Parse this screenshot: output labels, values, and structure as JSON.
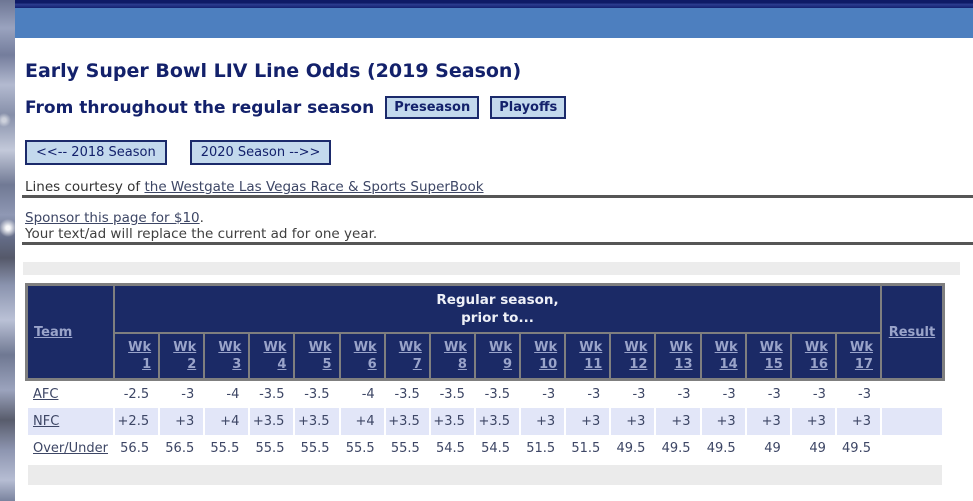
{
  "page": {
    "title": "Early Super Bowl LIV Line Odds (2019 Season)",
    "subtitle": "From throughout the regular season"
  },
  "nav": {
    "preseason_label": "Preseason",
    "playoffs_label": "Playoffs",
    "prev_season_label": "<<-- 2018 Season",
    "next_season_label": "2020 Season -->>"
  },
  "credit": {
    "prefix": "Lines courtesy of ",
    "link_text": "the Westgate Las Vegas Race & Sports SuperBook"
  },
  "sponsor": {
    "link_text": "Sponsor this page for $10",
    "link_suffix": ".",
    "note": "Your text/ad will replace the current ad for one year."
  },
  "table": {
    "team_header": "Team",
    "result_header": "Result",
    "group_header_line1": "Regular season,",
    "group_header_line2": "prior to...",
    "week_label": "Wk",
    "week_numbers": [
      "1",
      "2",
      "3",
      "4",
      "5",
      "6",
      "7",
      "8",
      "9",
      "10",
      "11",
      "12",
      "13",
      "14",
      "15",
      "16",
      "17"
    ],
    "rows": [
      {
        "label": "AFC",
        "values": [
          "-2.5",
          "-3",
          "-4",
          "-3.5",
          "-3.5",
          "-4",
          "-3.5",
          "-3.5",
          "-3.5",
          "-3",
          "-3",
          "-3",
          "-3",
          "-3",
          "-3",
          "-3",
          "-3"
        ],
        "result": ""
      },
      {
        "label": "NFC",
        "values": [
          "+2.5",
          "+3",
          "+4",
          "+3.5",
          "+3.5",
          "+4",
          "+3.5",
          "+3.5",
          "+3.5",
          "+3",
          "+3",
          "+3",
          "+3",
          "+3",
          "+3",
          "+3",
          "+3"
        ],
        "result": ""
      },
      {
        "label": "Over/Under",
        "values": [
          "56.5",
          "56.5",
          "55.5",
          "55.5",
          "55.5",
          "55.5",
          "55.5",
          "54.5",
          "54.5",
          "51.5",
          "51.5",
          "49.5",
          "49.5",
          "49.5",
          "49",
          "49",
          "49.5"
        ],
        "result": ""
      }
    ]
  },
  "colors": {
    "header_bg": "#1b2a66",
    "header_link": "#9aa4ca",
    "group_header_text": "#eef0f7",
    "table_border": "#7f7f7f",
    "alt_row_bg": "#e2e6f8",
    "body_text": "#3d4665",
    "title_text": "#13216b",
    "top_band": "#4d7fbf",
    "top_bar": "#0e1a66",
    "button_bg": "#c3d9ed",
    "button_border": "#1b2a6b",
    "ad_strip_bg": "#ececec",
    "rule": "#565656"
  }
}
